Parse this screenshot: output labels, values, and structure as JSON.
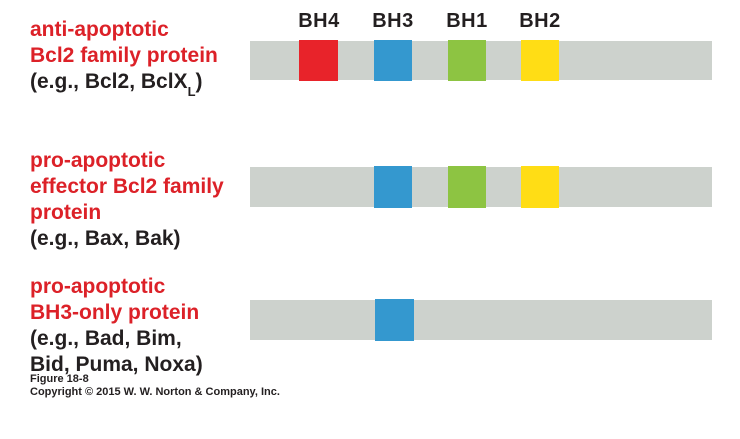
{
  "colors": {
    "bar_gray": "#cdd2cd",
    "bh4_red": "#e8232a",
    "bh3_blue": "#3498cf",
    "bh1_green": "#8dc442",
    "bh2_yellow": "#ffdd15",
    "label_red": "#dc2128",
    "text_black": "#231f20"
  },
  "domain_headers": {
    "bh4": "BH4",
    "bh3": "BH3",
    "bh1": "BH1",
    "bh2": "BH2"
  },
  "rows": {
    "anti_apoptotic": {
      "title_line1": "anti-apoptotic",
      "title_line2": "Bcl2 family protein",
      "example_pre": "(e.g., Bcl2, BclX",
      "example_sub": "L",
      "example_post": ")",
      "domains_present": [
        "BH4",
        "BH3",
        "BH1",
        "BH2"
      ]
    },
    "pro_apoptotic_effector": {
      "title_line1": "pro-apoptotic",
      "title_line2": "effector Bcl2 family",
      "title_line3": "protein",
      "example": "(e.g., Bax, Bak)",
      "domains_present": [
        "BH3",
        "BH1",
        "BH2"
      ]
    },
    "pro_apoptotic_bh3_only": {
      "title_line1": "pro-apoptotic",
      "title_line2": "BH3-only protein",
      "example_line1": "(e.g., Bad, Bim,",
      "example_line2": "Bid, Puma, Noxa)",
      "domains_present": [
        "BH3"
      ]
    }
  },
  "caption": {
    "figure_label": "Figure 18-8",
    "copyright": "Copyright © 2015 W. W. Norton & Company, Inc."
  }
}
